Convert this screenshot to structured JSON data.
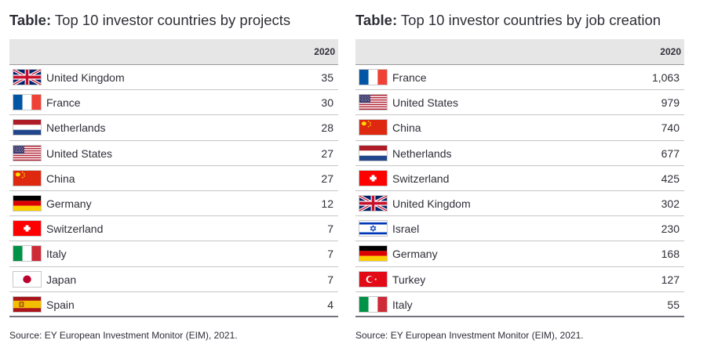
{
  "left": {
    "title_prefix": "Table:",
    "title_text": " Top 10 investor countries by projects",
    "column_header": "2020",
    "rows": [
      {
        "flag": "flag-uk-icon",
        "country": "United Kingdom",
        "value": "35"
      },
      {
        "flag": "flag-france-icon",
        "country": "France",
        "value": "30"
      },
      {
        "flag": "flag-netherlands-icon",
        "country": "Netherlands",
        "value": "28"
      },
      {
        "flag": "flag-usa-icon",
        "country": "United States",
        "value": "27"
      },
      {
        "flag": "flag-china-icon",
        "country": "China",
        "value": "27"
      },
      {
        "flag": "flag-germany-icon",
        "country": "Germany",
        "value": "12"
      },
      {
        "flag": "flag-switzerland-icon",
        "country": "Switzerland",
        "value": "7"
      },
      {
        "flag": "flag-italy-icon",
        "country": "Italy",
        "value": "7"
      },
      {
        "flag": "flag-japan-icon",
        "country": "Japan",
        "value": "7"
      },
      {
        "flag": "flag-spain-icon",
        "country": "Spain",
        "value": "4"
      }
    ],
    "source": "Source: EY European Investment Monitor (EIM), 2021."
  },
  "right": {
    "title_prefix": "Table:",
    "title_text": " Top 10 investor countries by job creation",
    "column_header": "2020",
    "rows": [
      {
        "flag": "flag-france-icon",
        "country": "France",
        "value": "1,063"
      },
      {
        "flag": "flag-usa-icon",
        "country": "United States",
        "value": "979"
      },
      {
        "flag": "flag-china-icon",
        "country": "China",
        "value": "740"
      },
      {
        "flag": "flag-netherlands-icon",
        "country": "Netherlands",
        "value": "677"
      },
      {
        "flag": "flag-switzerland-icon",
        "country": "Switzerland",
        "value": "425"
      },
      {
        "flag": "flag-uk-icon",
        "country": "United Kingdom",
        "value": "302"
      },
      {
        "flag": "flag-israel-icon",
        "country": "Israel",
        "value": "230"
      },
      {
        "flag": "flag-germany-icon",
        "country": "Germany",
        "value": "168"
      },
      {
        "flag": "flag-turkey-icon",
        "country": "Turkey",
        "value": "127"
      },
      {
        "flag": "flag-italy-icon",
        "country": "Italy",
        "value": "55"
      }
    ],
    "source": "Source: EY European Investment Monitor (EIM), 2021."
  }
}
